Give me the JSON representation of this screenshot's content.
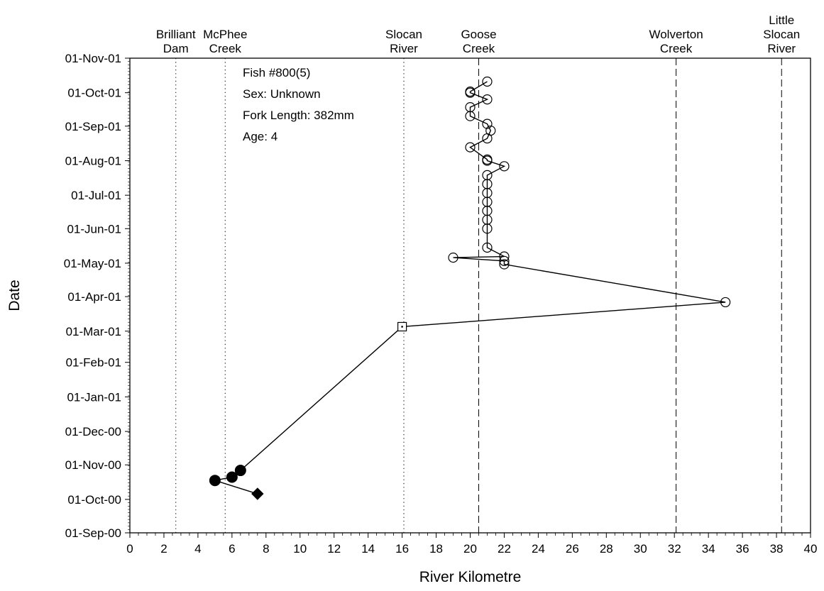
{
  "chart_data": {
    "type": "scatter",
    "xlabel": "River Kilometre",
    "ylabel": "Date",
    "xlim": [
      0,
      40
    ],
    "x_ticks": [
      0,
      2,
      4,
      6,
      8,
      10,
      12,
      14,
      16,
      18,
      20,
      22,
      24,
      26,
      28,
      30,
      32,
      34,
      36,
      38,
      40
    ],
    "x_tick_labels": [
      "0",
      "2",
      "4",
      "6",
      "8",
      "10",
      "12",
      "14",
      "16",
      "18",
      "20",
      "22",
      "24",
      "26",
      "28",
      "30",
      "32",
      "34",
      "36",
      "38",
      "40"
    ],
    "ylim": [
      "2000-09-01",
      "2001-11-01"
    ],
    "y_ticks": [
      "2000-09-01",
      "2000-10-01",
      "2000-11-01",
      "2000-12-01",
      "2001-01-01",
      "2001-02-01",
      "2001-03-01",
      "2001-04-01",
      "2001-05-01",
      "2001-06-01",
      "2001-07-01",
      "2001-08-01",
      "2001-09-01",
      "2001-10-01",
      "2001-11-01"
    ],
    "y_tick_labels": [
      "01-Sep-00",
      "01-Oct-00",
      "01-Nov-00",
      "01-Dec-00",
      "01-Jan-01",
      "01-Feb-01",
      "01-Mar-01",
      "01-Apr-01",
      "01-May-01",
      "01-Jun-01",
      "01-Jul-01",
      "01-Aug-01",
      "01-Sep-01",
      "01-Oct-01",
      "01-Nov-01"
    ],
    "reference_lines": [
      {
        "x": 2.7,
        "style": "dotted",
        "label_lines": [
          "Brilliant",
          "Dam"
        ]
      },
      {
        "x": 5.6,
        "style": "dotted",
        "label_lines": [
          "McPhee",
          "Creek"
        ]
      },
      {
        "x": 16.1,
        "style": "dotted",
        "label_lines": [
          "Slocan",
          "River"
        ]
      },
      {
        "x": 20.5,
        "style": "dashed",
        "label_lines": [
          "Goose",
          "Creek"
        ]
      },
      {
        "x": 32.1,
        "style": "dashed",
        "label_lines": [
          "Wolverton",
          "Creek"
        ]
      },
      {
        "x": 38.3,
        "style": "dashed",
        "label_lines": [
          "Little",
          "Slocan",
          "River"
        ]
      }
    ],
    "annotations": [
      "Fish #800(5)",
      "Sex: Unknown",
      "Fork Length: 382mm",
      "Age: 4"
    ],
    "track": [
      {
        "x": 7.5,
        "date": "2000-10-06",
        "marker": "diamond-filled"
      },
      {
        "x": 5.0,
        "date": "2000-10-18",
        "marker": "circle-filled"
      },
      {
        "x": 6.0,
        "date": "2000-10-21",
        "marker": "circle-filled"
      },
      {
        "x": 6.5,
        "date": "2000-10-27",
        "marker": "circle-filled"
      },
      {
        "x": 16.0,
        "date": "2001-03-05",
        "marker": "square-open"
      },
      {
        "x": 35.0,
        "date": "2001-03-27",
        "marker": "circle-open"
      },
      {
        "x": 22.0,
        "date": "2001-04-30",
        "marker": "circle-open"
      },
      {
        "x": 22.0,
        "date": "2001-05-03",
        "marker": "circle-open"
      },
      {
        "x": 19.0,
        "date": "2001-05-06",
        "marker": "circle-open"
      },
      {
        "x": 22.0,
        "date": "2001-05-07",
        "marker": "circle-open"
      },
      {
        "x": 21.0,
        "date": "2001-05-15",
        "marker": "circle-open"
      },
      {
        "x": 21.0,
        "date": "2001-06-01",
        "marker": "circle-open"
      },
      {
        "x": 21.0,
        "date": "2001-06-09",
        "marker": "circle-open"
      },
      {
        "x": 21.0,
        "date": "2001-06-17",
        "marker": "circle-open"
      },
      {
        "x": 21.0,
        "date": "2001-06-25",
        "marker": "circle-open"
      },
      {
        "x": 21.0,
        "date": "2001-07-03",
        "marker": "circle-open"
      },
      {
        "x": 21.0,
        "date": "2001-07-11",
        "marker": "circle-open"
      },
      {
        "x": 21.0,
        "date": "2001-07-19",
        "marker": "circle-open"
      },
      {
        "x": 22.0,
        "date": "2001-07-27",
        "marker": "circle-open"
      },
      {
        "x": 21.0,
        "date": "2001-08-01",
        "marker": "circle-open"
      },
      {
        "x": 21.0,
        "date": "2001-08-02",
        "marker": "circle-open"
      },
      {
        "x": 20.0,
        "date": "2001-08-13",
        "marker": "circle-open"
      },
      {
        "x": 21.0,
        "date": "2001-08-21",
        "marker": "circle-open"
      },
      {
        "x": 21.2,
        "date": "2001-08-28",
        "marker": "circle-open"
      },
      {
        "x": 21.0,
        "date": "2001-09-03",
        "marker": "circle-open"
      },
      {
        "x": 20.0,
        "date": "2001-09-10",
        "marker": "circle-open"
      },
      {
        "x": 20.0,
        "date": "2001-09-18",
        "marker": "circle-open"
      },
      {
        "x": 21.0,
        "date": "2001-09-25",
        "marker": "circle-open"
      },
      {
        "x": 20.0,
        "date": "2001-10-01",
        "marker": "circle-open"
      },
      {
        "x": 20.0,
        "date": "2001-10-02",
        "marker": "circle-open"
      },
      {
        "x": 21.0,
        "date": "2001-10-11",
        "marker": "circle-open"
      }
    ],
    "grid": false,
    "legend": "none"
  }
}
